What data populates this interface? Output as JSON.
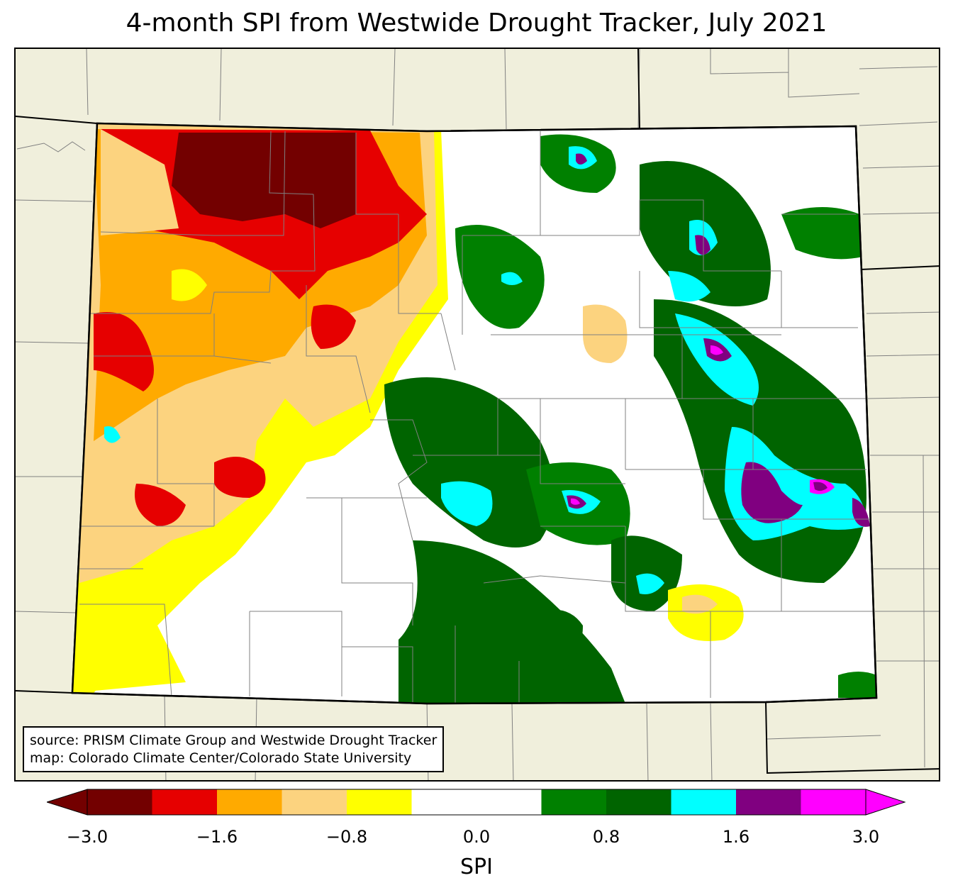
{
  "title": "4-month SPI from Westwide Drought Tracker, July 2021",
  "source_lines": [
    "source: PRISM Climate Group and Westwide Drought Tracker",
    "map: Colorado Climate Center/Colorado State University"
  ],
  "colorbar": {
    "label": "SPI",
    "ticks": [
      "−3.0",
      "−1.6",
      "−0.8",
      "0.0",
      "0.8",
      "1.6",
      "3.0"
    ],
    "bins": [
      {
        "color": "#730000"
      },
      {
        "color": "#e60000"
      },
      {
        "color": "#ffaa00"
      },
      {
        "color": "#fcd37f"
      },
      {
        "color": "#ffff00"
      },
      {
        "color": "#ffffff"
      },
      {
        "color": "#ffffff"
      },
      {
        "color": "#008000"
      },
      {
        "color": "#006400"
      },
      {
        "color": "#00ffff"
      },
      {
        "color": "#800080"
      },
      {
        "color": "#ff00ff"
      }
    ]
  },
  "colors": {
    "land_outside": "#f0efdc",
    "county_lines": "#808080",
    "state_lines": "#000000"
  }
}
